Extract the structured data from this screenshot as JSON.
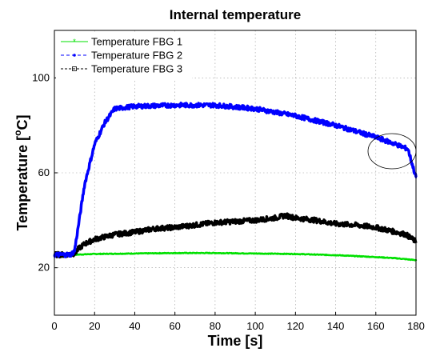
{
  "chart_data": {
    "type": "line",
    "title": "Internal temperature",
    "xlabel": "Time [s]",
    "ylabel_main": "Temperature [",
    "ylabel_sup": "o",
    "ylabel_end": "C]",
    "xlim": [
      0,
      180
    ],
    "ylim": [
      0,
      120
    ],
    "xticks": [
      0,
      20,
      40,
      60,
      80,
      100,
      120,
      140,
      160,
      180
    ],
    "yticks": [
      20,
      60,
      100
    ],
    "grid": true,
    "legend_position": "top-left",
    "series": [
      {
        "name": "Temperature FBG 1",
        "color": "#00e000",
        "marker": "star",
        "x": [
          0,
          10,
          20,
          40,
          60,
          80,
          100,
          120,
          140,
          160,
          170,
          180
        ],
        "y": [
          25.5,
          25.5,
          25.8,
          26.0,
          26.2,
          26.2,
          26.0,
          25.8,
          25.3,
          24.5,
          24.0,
          23.2
        ]
      },
      {
        "name": "Temperature FBG 2",
        "color": "#0000ff",
        "marker": "dot",
        "x": [
          0,
          8,
          10,
          12,
          15,
          20,
          25,
          30,
          40,
          60,
          80,
          100,
          120,
          140,
          160,
          170,
          176,
          178,
          180
        ],
        "y": [
          25.5,
          25.5,
          27,
          38,
          55,
          72,
          81,
          87,
          88,
          88.5,
          88.5,
          87,
          84,
          80,
          75,
          72,
          70,
          64,
          58
        ]
      },
      {
        "name": "Temperature FBG 3",
        "color": "#000000",
        "marker": "square",
        "x": [
          0,
          5,
          10,
          12,
          15,
          20,
          30,
          40,
          50,
          60,
          70,
          80,
          90,
          100,
          110,
          115,
          120,
          130,
          140,
          150,
          160,
          170,
          175,
          180
        ],
        "y": [
          25.5,
          25.5,
          26,
          28,
          30,
          32,
          34,
          35,
          36.5,
          37,
          38,
          39,
          39.5,
          40,
          41,
          42,
          41,
          40,
          38.5,
          38,
          37,
          35,
          34,
          31
        ]
      }
    ]
  }
}
